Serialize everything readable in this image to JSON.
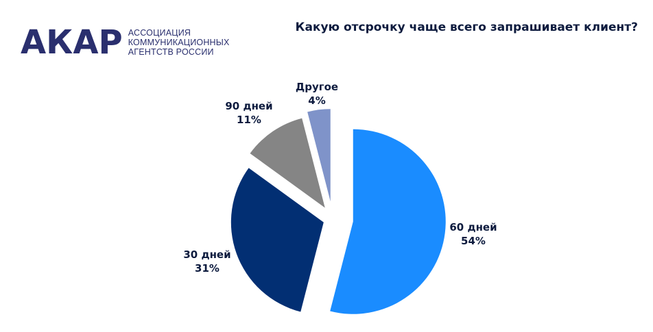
{
  "logo": {
    "mark": "АКАР",
    "line1": "АССОЦИАЦИЯ",
    "line2": "КОММУНИКАЦИОННЫХ",
    "line3": "АГЕНТСТВ РОССИИ"
  },
  "chart_data": {
    "type": "pie",
    "title": "Какую отсрочку чаще всего запрашивает клиент?",
    "exploded": true,
    "slices": [
      {
        "label": "60 дней",
        "value": 54,
        "value_label": "54%",
        "color": "#1a8cff"
      },
      {
        "label": "30 дней",
        "value": 31,
        "value_label": "31%",
        "color": "#022f73"
      },
      {
        "label": "90 дней",
        "value": 11,
        "value_label": "11%",
        "color": "#858585"
      },
      {
        "label": "Другое",
        "value": 4,
        "value_label": "4%",
        "color": "#7f93c9"
      }
    ]
  }
}
